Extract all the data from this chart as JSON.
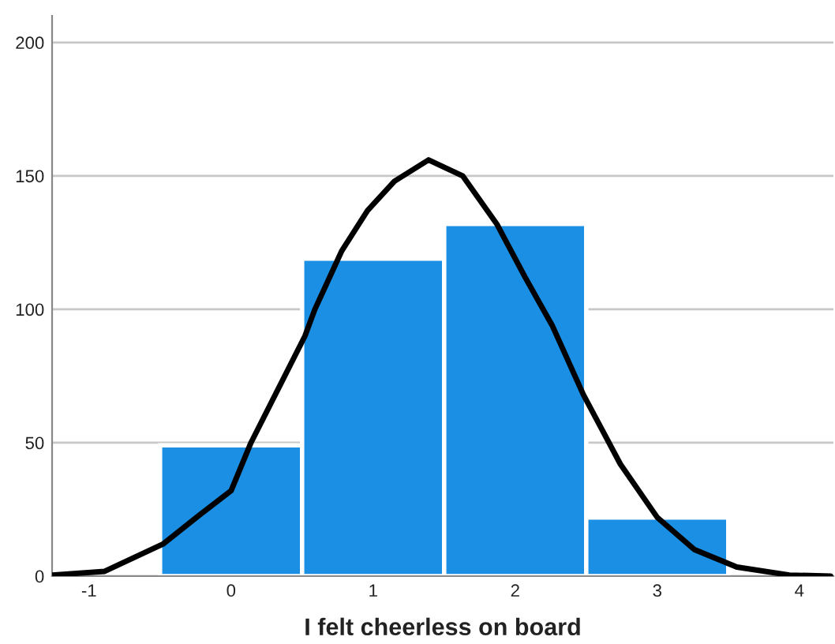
{
  "chart_data": {
    "type": "histogram",
    "xlabel": "I felt cheerless on board",
    "bins": [
      -0.5,
      0.5,
      1.5,
      2.5,
      3.5
    ],
    "values": [
      49,
      119,
      132,
      22
    ],
    "color": "#1a8fe3",
    "series": [
      {
        "type": "line",
        "color": "#000000",
        "x": [
          -1.26,
          -0.89,
          -0.48,
          -0.22,
          0,
          0.14,
          0.33,
          0.52,
          0.59,
          0.78,
          0.96,
          1.15,
          1.39,
          1.63,
          1.87,
          2.07,
          2.26,
          2.48,
          2.74,
          3.0,
          3.26,
          3.56,
          3.93,
          4.22
        ],
        "values": [
          0.4,
          1.8,
          12,
          23,
          32,
          50,
          70,
          90,
          100,
          122,
          137,
          148,
          156,
          150,
          132,
          112,
          94,
          68,
          42,
          22,
          10,
          3.4,
          0.4,
          0
        ]
      }
    ],
    "xlim": [
      -1.26,
      4.24
    ],
    "ylim": [
      0,
      210
    ],
    "xticks": [
      -1,
      0,
      1,
      2,
      3,
      4
    ],
    "yticks": [
      0,
      50,
      100,
      150,
      200
    ],
    "grid": "y",
    "line_style": "solid",
    "marker": "none"
  }
}
